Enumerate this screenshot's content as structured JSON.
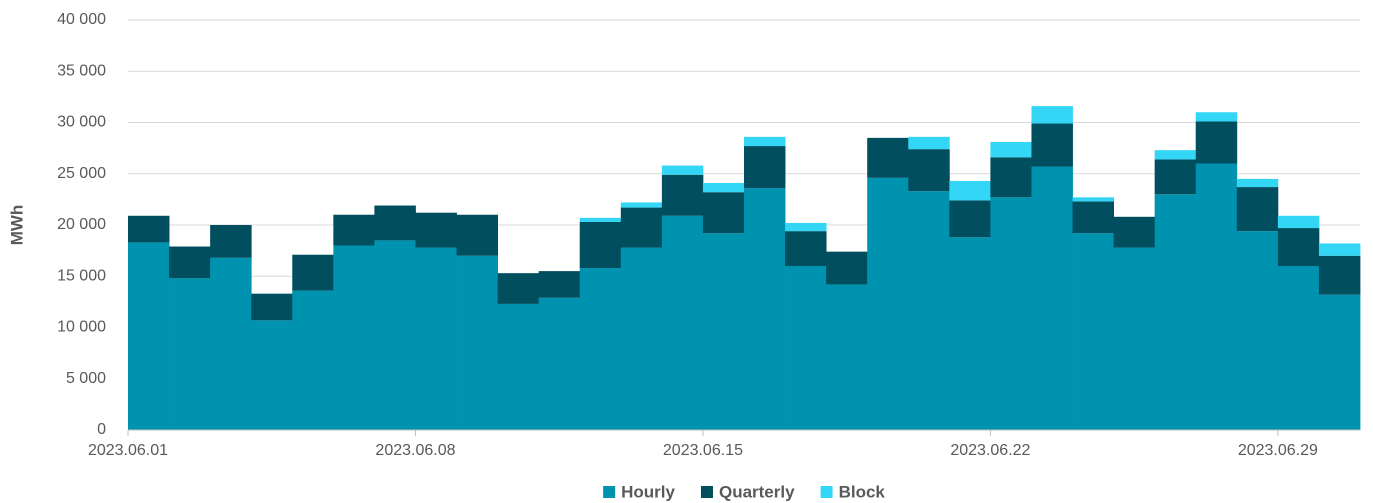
{
  "chart_data": {
    "type": "stacked_bar",
    "ylabel": "MWh",
    "categories": [
      "2023.06.01",
      null,
      null,
      null,
      null,
      null,
      null,
      "2023.06.08",
      null,
      null,
      null,
      null,
      null,
      null,
      "2023.06.15",
      null,
      null,
      null,
      null,
      null,
      null,
      "2023.06.22",
      null,
      null,
      null,
      null,
      null,
      null,
      "2023.06.29",
      null
    ],
    "series": [
      {
        "name": "Hourly",
        "color": "#0093b0",
        "values": [
          18300,
          14800,
          16800,
          10700,
          13600,
          18000,
          18500,
          17800,
          17000,
          12300,
          12900,
          15800,
          17800,
          20900,
          19200,
          23600,
          16000,
          14200,
          24600,
          23300,
          18800,
          22700,
          25700,
          19200,
          17800,
          23000,
          26000,
          19400,
          16000,
          13200
        ]
      },
      {
        "name": "Quarterly",
        "color": "#004e5e",
        "values": [
          2600,
          3100,
          3200,
          2600,
          3500,
          3000,
          3400,
          3400,
          4000,
          3000,
          2600,
          4500,
          3900,
          4000,
          4000,
          4100,
          3400,
          3200,
          3900,
          4100,
          3600,
          3900,
          4200,
          3100,
          3000,
          3400,
          4100,
          4300,
          3700,
          3800
        ]
      },
      {
        "name": "Block",
        "color": "#33d6f5",
        "values": [
          0,
          0,
          0,
          0,
          0,
          0,
          0,
          0,
          0,
          0,
          0,
          400,
          500,
          900,
          900,
          900,
          800,
          0,
          0,
          1200,
          1900,
          1500,
          1700,
          400,
          0,
          900,
          900,
          800,
          1200,
          1200
        ]
      }
    ],
    "ylim": [
      0,
      40000
    ],
    "yticks": [
      0,
      {
        "value": 5000,
        "label": "5 000"
      },
      {
        "value": 10000,
        "label": "10 000"
      },
      {
        "value": 15000,
        "label": "15 000"
      },
      {
        "value": 20000,
        "label": "20 000"
      },
      {
        "value": 25000,
        "label": "25 000"
      },
      {
        "value": 30000,
        "label": "30 000"
      },
      {
        "value": 35000,
        "label": "35 000"
      },
      {
        "value": 40000,
        "label": "40 000"
      }
    ],
    "grid": true,
    "legend": "bottom"
  }
}
